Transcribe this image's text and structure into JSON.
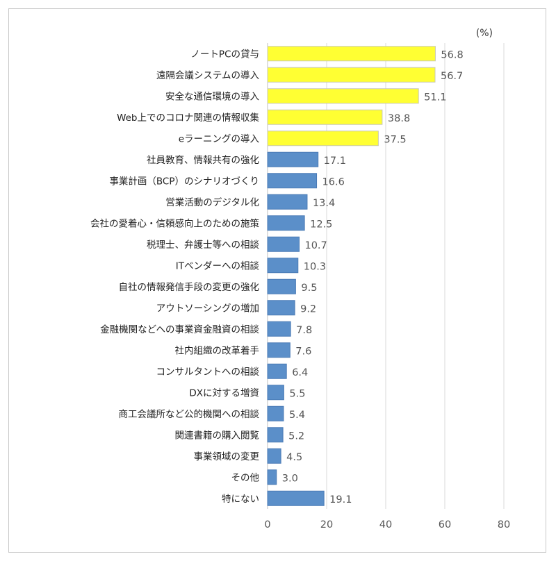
{
  "chart_data": {
    "type": "bar",
    "orientation": "horizontal",
    "unit_label": "(%)",
    "categories": [
      "ノートPCの貸与",
      "遠隔会議システムの導入",
      "安全な通信環境の導入",
      "Web上でのコロナ関連の情報収集",
      "eラーニングの導入",
      "社員教育、情報共有の強化",
      "事業計画（BCP）のシナリオづくり",
      "営業活動のデジタル化",
      "会社の愛着心・信頼感向上のための施策",
      "税理士、弁護士等への相談",
      "ITベンダーへの相談",
      "自社の情報発信手段の変更の強化",
      "アウトソーシングの増加",
      "金融機関などへの事業資金融資の相談",
      "社内組織の改革着手",
      "コンサルタントへの相談",
      "DXに対する増資",
      "商工会議所など公的機関への相談",
      "関連書籍の購入閲覧",
      "事業領域の変更",
      "その他",
      "特にない"
    ],
    "values": [
      56.8,
      56.7,
      51.1,
      38.8,
      37.5,
      17.1,
      16.6,
      13.4,
      12.5,
      10.7,
      10.3,
      9.5,
      9.2,
      7.8,
      7.6,
      6.4,
      5.5,
      5.4,
      5.2,
      4.5,
      3.0,
      19.1
    ],
    "value_labels": [
      "56.8",
      "56.7",
      "51.1",
      "38.8",
      "37.5",
      "17.1",
      "16.6",
      "13.4",
      "12.5",
      "10.7",
      "10.3",
      "9.5",
      "9.2",
      "7.8",
      "7.6",
      "6.4",
      "5.5",
      "5.4",
      "5.2",
      "4.5",
      "3.0",
      "19.1"
    ],
    "bar_colors": [
      "#ffff33",
      "#ffff33",
      "#ffff33",
      "#ffff33",
      "#ffff33",
      "#5b8fc9",
      "#5b8fc9",
      "#5b8fc9",
      "#5b8fc9",
      "#5b8fc9",
      "#5b8fc9",
      "#5b8fc9",
      "#5b8fc9",
      "#5b8fc9",
      "#5b8fc9",
      "#5b8fc9",
      "#5b8fc9",
      "#5b8fc9",
      "#5b8fc9",
      "#5b8fc9",
      "#5b8fc9",
      "#5b8fc9"
    ],
    "xlim": [
      0,
      80
    ],
    "x_ticks": [
      0,
      20,
      40,
      60,
      80
    ],
    "grid": true,
    "highlight_color": "#ffff33",
    "base_color": "#5b8fc9"
  }
}
